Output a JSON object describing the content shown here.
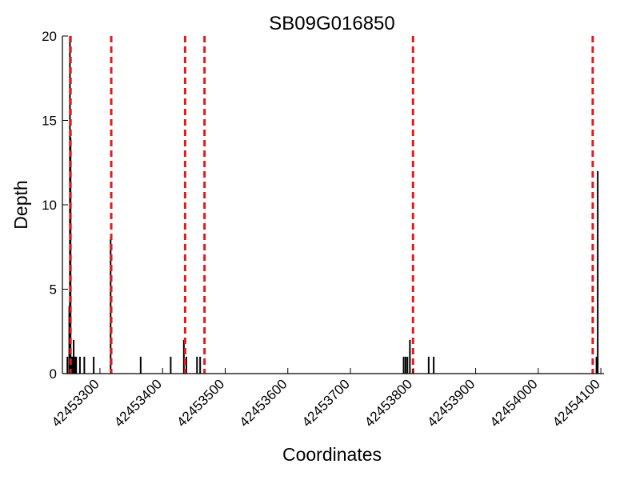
{
  "chart_data": {
    "type": "bar",
    "title": "SB09G016850",
    "xlabel": "Coordinates",
    "ylabel": "Depth",
    "xlim": [
      42453240,
      42454105
    ],
    "ylim": [
      0,
      20
    ],
    "xticks": [
      42453300,
      42453400,
      42453500,
      42453600,
      42453700,
      42453800,
      42453900,
      42454000,
      42454100
    ],
    "yticks": [
      0,
      5,
      10,
      15,
      20
    ],
    "grid": false,
    "colors": {
      "depth": "#000000",
      "boundary": "#e31a1c"
    },
    "series": [
      {
        "x": [
          42453248,
          42453251,
          42453252,
          42453253,
          42453254,
          42453255,
          42453256,
          42453258,
          42453260,
          42453262,
          42453268,
          42453275,
          42453290,
          42453317,
          42453365,
          42453413,
          42453434,
          42453438,
          42453455,
          42453460,
          42453785,
          42453788,
          42453791,
          42453795,
          42453825,
          42453833,
          42454093,
          42454095
        ],
        "values": [
          1,
          4,
          20,
          14,
          1,
          1,
          1,
          2,
          1,
          1,
          1,
          1,
          1,
          8,
          1,
          1,
          2,
          1,
          1,
          1,
          1,
          1,
          1,
          2,
          1,
          1,
          1,
          12
        ]
      }
    ],
    "boundaries": [
      42453253,
      42453318,
      42453436,
      42453467,
      42453800,
      42454087
    ]
  }
}
